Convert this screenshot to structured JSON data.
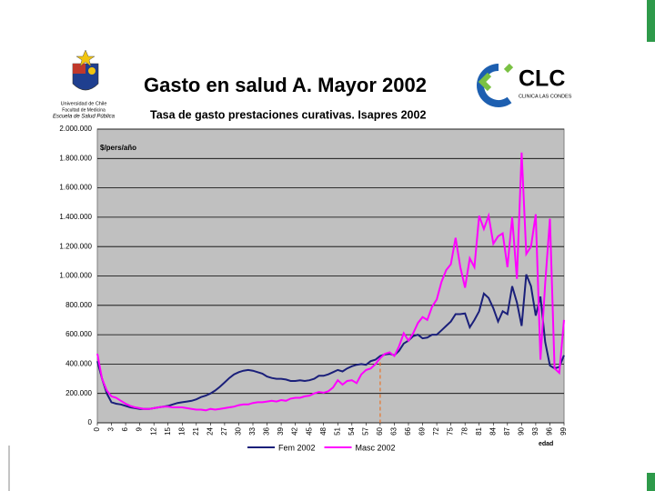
{
  "slide_title": "Gasto en salud A. Mayor 2002",
  "logo_left": [
    "Universidad de Chile",
    "Facultad de Medicina",
    "Escuela de Salud Pública"
  ],
  "logo_right": {
    "name": "CLC",
    "subtitle": "CLINICA LAS CONDES"
  },
  "chart_data": {
    "type": "line",
    "title": "Tasa de gasto prestaciones curativas. Isapres 2002",
    "y_label": "$/pers/año",
    "x_label": "edad",
    "x": [
      0,
      1,
      2,
      3,
      4,
      5,
      6,
      7,
      8,
      9,
      10,
      11,
      12,
      13,
      14,
      15,
      16,
      17,
      18,
      19,
      20,
      21,
      22,
      23,
      24,
      25,
      26,
      27,
      28,
      29,
      30,
      31,
      32,
      33,
      34,
      35,
      36,
      37,
      38,
      39,
      40,
      41,
      42,
      43,
      44,
      45,
      46,
      47,
      48,
      49,
      50,
      51,
      52,
      53,
      54,
      55,
      56,
      57,
      58,
      59,
      60,
      61,
      62,
      63,
      64,
      65,
      66,
      67,
      68,
      69,
      70,
      71,
      72,
      73,
      74,
      75,
      76,
      77,
      78,
      79,
      80,
      81,
      82,
      83,
      84,
      85,
      86,
      87,
      88,
      89,
      90,
      91,
      92,
      93,
      94,
      95,
      96,
      97,
      98,
      99
    ],
    "xlim": [
      0,
      99
    ],
    "xticks": [
      0,
      3,
      6,
      9,
      12,
      15,
      18,
      21,
      24,
      27,
      30,
      33,
      36,
      39,
      42,
      45,
      48,
      51,
      54,
      57,
      60,
      63,
      66,
      69,
      72,
      75,
      78,
      81,
      84,
      87,
      90,
      93,
      96,
      99
    ],
    "ylim": [
      0,
      2000000
    ],
    "yticks": [
      0,
      {
        "value": 200000,
        "label": "200.000"
      },
      {
        "value": 400000,
        "label": "400.000"
      },
      {
        "value": 600000,
        "label": "600.000"
      },
      {
        "value": 800000,
        "label": "800.000"
      },
      {
        "value": 1000000,
        "label": "1.000.000"
      },
      {
        "value": 1200000,
        "label": "1.200.000"
      },
      {
        "value": 1400000,
        "label": "1.400.000"
      },
      {
        "value": 1600000,
        "label": "1.600.000"
      },
      {
        "value": 1800000,
        "label": "1.800.000"
      },
      {
        "value": 2000000,
        "label": "2.000.000"
      }
    ],
    "grid": true,
    "marker_x": 60,
    "marker_color": "#e8742a",
    "series": [
      {
        "name": "Fem 2002",
        "color": "#1a1f7a",
        "values": [
          420000,
          300000,
          200000,
          140000,
          130000,
          125000,
          115000,
          105000,
          100000,
          95000,
          95000,
          95000,
          100000,
          105000,
          110000,
          115000,
          125000,
          135000,
          140000,
          145000,
          150000,
          160000,
          175000,
          185000,
          200000,
          220000,
          245000,
          275000,
          305000,
          330000,
          345000,
          355000,
          360000,
          355000,
          345000,
          335000,
          315000,
          305000,
          300000,
          300000,
          295000,
          285000,
          285000,
          290000,
          285000,
          290000,
          300000,
          320000,
          320000,
          330000,
          345000,
          360000,
          350000,
          370000,
          385000,
          395000,
          400000,
          395000,
          420000,
          430000,
          455000,
          465000,
          470000,
          460000,
          490000,
          540000,
          560000,
          590000,
          600000,
          575000,
          580000,
          600000,
          600000,
          630000,
          660000,
          690000,
          740000,
          740000,
          745000,
          650000,
          700000,
          760000,
          880000,
          850000,
          780000,
          690000,
          760000,
          740000,
          930000,
          820000,
          660000,
          1010000,
          930000,
          730000,
          860000,
          550000,
          390000,
          370000,
          380000,
          460000
        ]
      },
      {
        "name": "Masc 2002",
        "color": "#ff00ff",
        "values": [
          470000,
          300000,
          220000,
          180000,
          170000,
          150000,
          130000,
          115000,
          105000,
          100000,
          95000,
          95000,
          100000,
          105000,
          110000,
          110000,
          105000,
          105000,
          105000,
          100000,
          95000,
          90000,
          90000,
          85000,
          95000,
          90000,
          95000,
          100000,
          105000,
          110000,
          120000,
          125000,
          125000,
          135000,
          140000,
          140000,
          145000,
          150000,
          145000,
          155000,
          150000,
          165000,
          170000,
          170000,
          180000,
          185000,
          200000,
          210000,
          205000,
          215000,
          240000,
          290000,
          260000,
          285000,
          290000,
          270000,
          330000,
          360000,
          370000,
          400000,
          440000,
          470000,
          480000,
          455000,
          520000,
          610000,
          560000,
          610000,
          680000,
          720000,
          700000,
          790000,
          840000,
          960000,
          1040000,
          1080000,
          1260000,
          1060000,
          920000,
          1120000,
          1060000,
          1410000,
          1320000,
          1410000,
          1220000,
          1270000,
          1290000,
          1060000,
          1400000,
          980000,
          1840000,
          1150000,
          1200000,
          1420000,
          430000,
          950000,
          1390000,
          370000,
          340000,
          700000
        ]
      }
    ]
  }
}
